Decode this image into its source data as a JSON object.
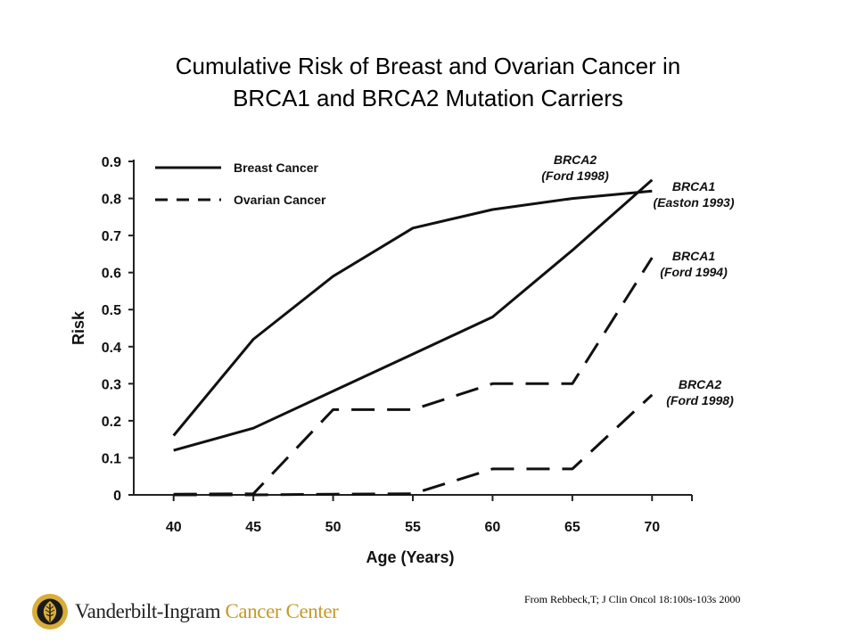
{
  "slide": {
    "title_line1": "Cumulative Risk of Breast and Ovarian Cancer in",
    "title_line2": "BRCA1 and BRCA2 Mutation Carriers",
    "source": "From Rebbeck,T; J Clin Oncol    18:100s-103s  2000",
    "logo_name": "Vanderbilt-Ingram",
    "logo_accent": "Cancer Center",
    "accent_color": "#c39a2a"
  },
  "chart_data": {
    "type": "line",
    "xlabel": "Age (Years)",
    "ylabel": "Risk",
    "x": [
      40,
      45,
      50,
      55,
      60,
      65,
      70
    ],
    "xlim": [
      37.5,
      72.5
    ],
    "ylim": [
      0,
      0.9
    ],
    "yticks": [
      "0",
      "0.1",
      "0.2",
      "0.3",
      "0.4",
      "0.5",
      "0.6",
      "0.7",
      "0.8",
      "0.9"
    ],
    "grid": false,
    "legend": {
      "placement": "top-left",
      "entries": [
        {
          "label": "Breast Cancer",
          "style": "solid"
        },
        {
          "label": "Ovarian Cancer",
          "style": "dashed"
        }
      ]
    },
    "series": [
      {
        "style": "solid",
        "values": [
          0.16,
          0.42,
          0.59,
          0.72,
          0.77,
          0.8,
          0.82
        ],
        "annotation": [
          "BRCA2",
          "(Ford 1998)"
        ]
      },
      {
        "style": "solid",
        "values": [
          0.12,
          0.18,
          0.28,
          0.38,
          0.48,
          0.66,
          0.85
        ],
        "annotation": [
          "BRCA1",
          "(Easton 1993)"
        ]
      },
      {
        "style": "dashed",
        "values": [
          0.002,
          0.003,
          0.23,
          0.23,
          0.3,
          0.3,
          0.64
        ],
        "annotation": [
          "BRCA1",
          "(Ford 1994)"
        ]
      },
      {
        "style": "dashed",
        "values": [
          0.0,
          0.0,
          0.002,
          0.003,
          0.07,
          0.07,
          0.27
        ],
        "annotation": [
          "BRCA2",
          "(Ford 1998)"
        ]
      }
    ]
  }
}
